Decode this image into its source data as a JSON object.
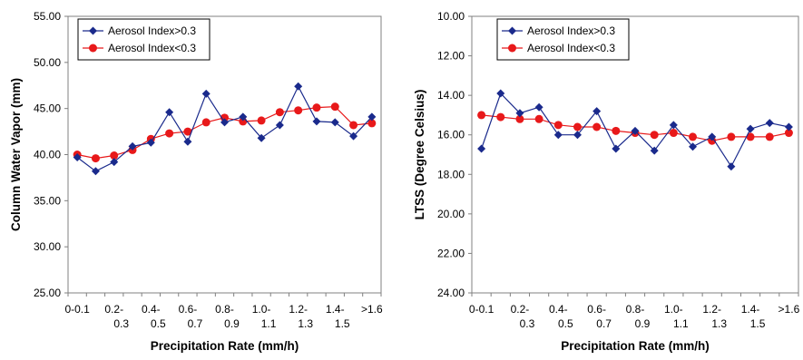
{
  "chart_data": [
    {
      "type": "line",
      "xlabel": "Precipitation Rate (mm/h)",
      "ylabel": "Column Water Vapor (mm)",
      "ylim": [
        25,
        55
      ],
      "y_ticks": [
        "25.00",
        "30.00",
        "35.00",
        "40.00",
        "45.00",
        "50.00",
        "55.00"
      ],
      "y_reversed": false,
      "x_tick_labels": [
        {
          "index": 0,
          "lines": [
            "0-0.1"
          ]
        },
        {
          "index": 2,
          "lines": [
            "0.2-",
            "0.3"
          ]
        },
        {
          "index": 4,
          "lines": [
            "0.4-",
            "0.5"
          ]
        },
        {
          "index": 6,
          "lines": [
            "0.6-",
            "0.7"
          ]
        },
        {
          "index": 8,
          "lines": [
            "0.8-",
            "0.9"
          ]
        },
        {
          "index": 10,
          "lines": [
            "1.0-",
            "1.1"
          ]
        },
        {
          "index": 12,
          "lines": [
            "1.2-",
            "1.3"
          ]
        },
        {
          "index": 14,
          "lines": [
            "1.4-",
            "1.5"
          ]
        },
        {
          "index": 16,
          "lines": [
            ">1.6"
          ]
        }
      ],
      "grid": false,
      "legend_placement": "top-left",
      "series": [
        {
          "name": "Aerosol Index>0.3",
          "color": "#1a2a8c",
          "marker": "diamond",
          "values": [
            39.7,
            38.2,
            39.2,
            40.9,
            41.3,
            44.6,
            41.4,
            46.6,
            43.5,
            44.1,
            41.8,
            43.2,
            47.4,
            43.6,
            43.5,
            42.0,
            44.1
          ]
        },
        {
          "name": "Aerosol Index<0.3",
          "color": "#e8191a",
          "marker": "circle",
          "values": [
            40.0,
            39.6,
            39.9,
            40.5,
            41.7,
            42.3,
            42.5,
            43.5,
            44.0,
            43.6,
            43.7,
            44.6,
            44.8,
            45.1,
            45.2,
            43.2,
            43.4
          ]
        }
      ]
    },
    {
      "type": "line",
      "xlabel": "Precipitation Rate (mm/h)",
      "ylabel": "LTSS (Degree Celsius)",
      "ylim": [
        10,
        24
      ],
      "y_ticks": [
        "10.00",
        "12.00",
        "14.00",
        "16.00",
        "18.00",
        "20.00",
        "22.00",
        "24.00"
      ],
      "y_reversed": true,
      "x_tick_labels": [
        {
          "index": 0,
          "lines": [
            "0-0.1"
          ]
        },
        {
          "index": 2,
          "lines": [
            "0.2-",
            "0.3"
          ]
        },
        {
          "index": 4,
          "lines": [
            "0.4-",
            "0.5"
          ]
        },
        {
          "index": 6,
          "lines": [
            "0.6-",
            "0.7"
          ]
        },
        {
          "index": 8,
          "lines": [
            "0.8-",
            "0.9"
          ]
        },
        {
          "index": 10,
          "lines": [
            "1.0-",
            "1.1"
          ]
        },
        {
          "index": 12,
          "lines": [
            "1.2-",
            "1.3"
          ]
        },
        {
          "index": 14,
          "lines": [
            "1.4-",
            "1.5"
          ]
        },
        {
          "index": 16,
          "lines": [
            ">1.6"
          ]
        }
      ],
      "grid": false,
      "legend_placement": "top-left",
      "series": [
        {
          "name": "Aerosol Index>0.3",
          "color": "#1a2a8c",
          "marker": "diamond",
          "values": [
            16.7,
            13.9,
            14.9,
            14.6,
            16.0,
            16.0,
            14.8,
            16.7,
            15.8,
            16.8,
            15.5,
            16.6,
            16.1,
            17.6,
            15.7,
            15.4,
            15.6
          ]
        },
        {
          "name": "Aerosol Index<0.3",
          "color": "#e8191a",
          "marker": "circle",
          "values": [
            15.0,
            15.1,
            15.2,
            15.2,
            15.5,
            15.6,
            15.6,
            15.8,
            15.9,
            16.0,
            15.9,
            16.1,
            16.3,
            16.1,
            16.1,
            16.1,
            15.9
          ]
        }
      ]
    }
  ]
}
